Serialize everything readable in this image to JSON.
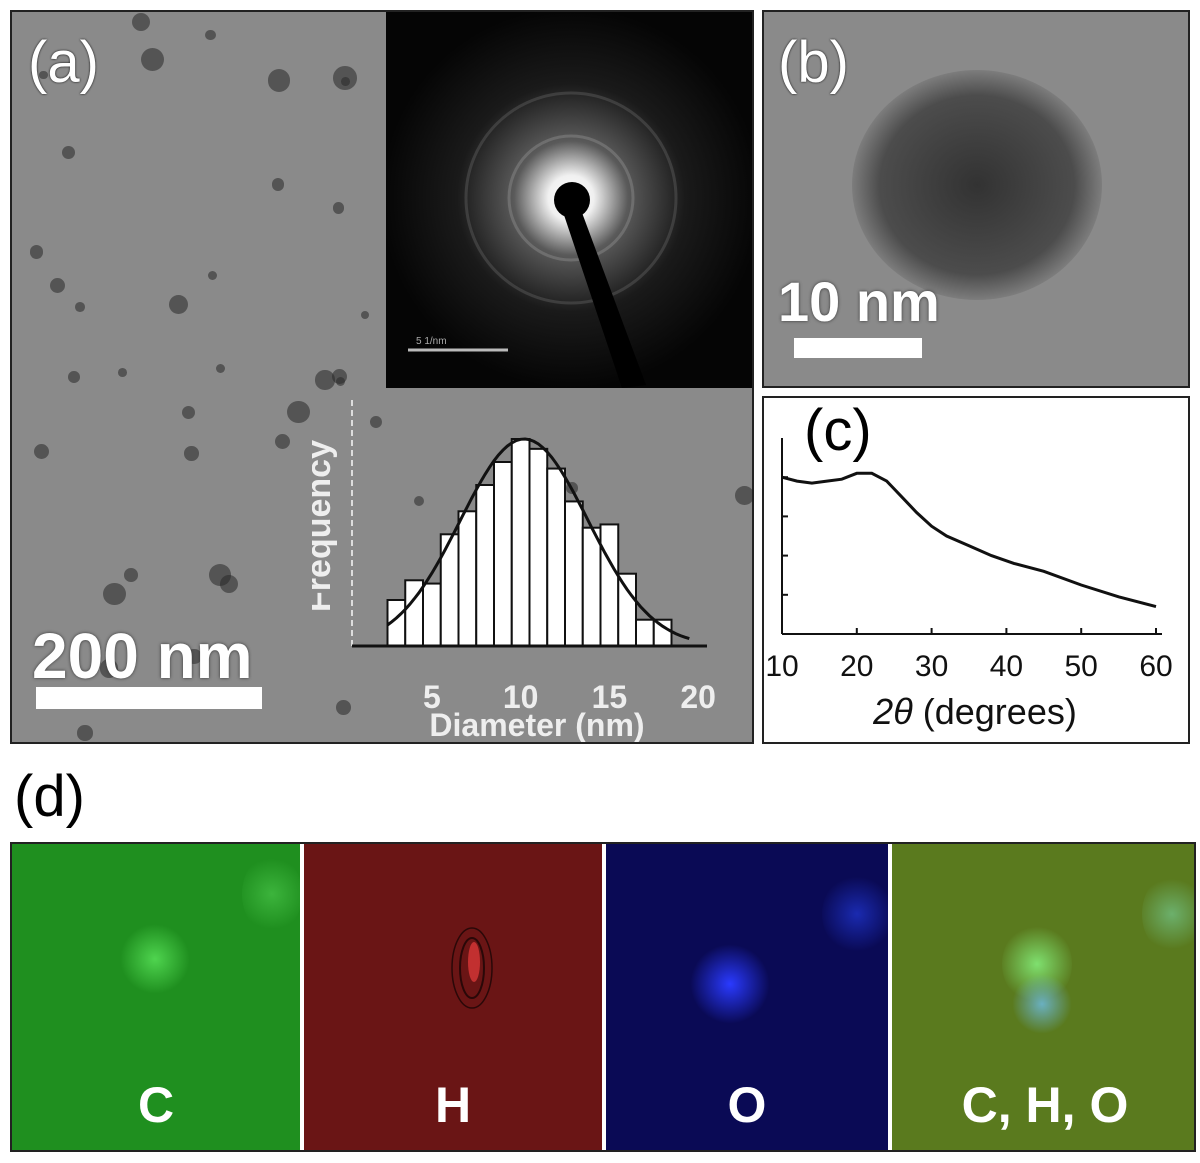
{
  "panel_a": {
    "label": "(a)",
    "scale_label": "200 nm",
    "inset_scale_label": "5 1/nm",
    "histogram": {
      "ylabel": "Frequency",
      "xlabel": "Diameter (nm)",
      "xticks": [
        "5",
        "10",
        "15",
        "20"
      ]
    }
  },
  "panel_b": {
    "label": "(b)",
    "scale_label": "10 nm"
  },
  "panel_c": {
    "label": "(c)",
    "xlabel_symbol": "2θ",
    "xlabel_unit": "(degrees)",
    "xticks": [
      "10",
      "20",
      "30",
      "40",
      "50",
      "60"
    ]
  },
  "panel_d": {
    "label": "(d)",
    "maps": [
      {
        "label": "C",
        "color": "#1f8f1f"
      },
      {
        "label": "H",
        "color": "#6a1515"
      },
      {
        "label": "O",
        "color": "#0a0a55"
      },
      {
        "label": "C, H, O",
        "color": "#5a7a1e"
      }
    ]
  },
  "chart_data": [
    {
      "type": "bar",
      "xlabel": "Diameter (nm)",
      "ylabel": "Frequency",
      "x": [
        3,
        4,
        5,
        6,
        7,
        8,
        9,
        10,
        11,
        12,
        13,
        14,
        15,
        16,
        17,
        18
      ],
      "values": [
        14,
        20,
        19,
        34,
        41,
        49,
        56,
        63,
        60,
        54,
        44,
        36,
        37,
        22,
        8,
        8
      ],
      "xlim": [
        0.5,
        20.5
      ],
      "ylim": [
        0,
        70
      ]
    },
    {
      "type": "line",
      "xlabel": "2θ (degrees)",
      "x": [
        10,
        12,
        14,
        16,
        18,
        20,
        22,
        24,
        26,
        28,
        30,
        32,
        35,
        38,
        41,
        45,
        50,
        55,
        60
      ],
      "y": [
        0.8,
        0.78,
        0.77,
        0.78,
        0.79,
        0.82,
        0.82,
        0.78,
        0.7,
        0.62,
        0.55,
        0.5,
        0.45,
        0.4,
        0.36,
        0.32,
        0.25,
        0.19,
        0.14
      ],
      "xlim": [
        10,
        60
      ],
      "ylim": [
        0,
        1
      ]
    }
  ]
}
